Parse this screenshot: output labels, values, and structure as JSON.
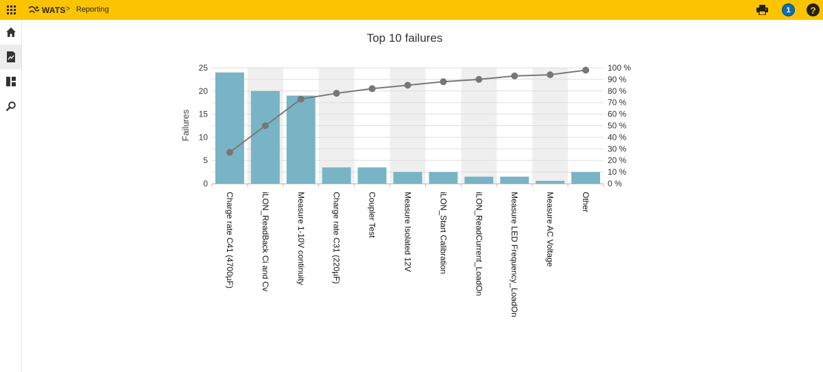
{
  "header": {
    "brand": "WATS",
    "separator": ">",
    "page": "Reporting",
    "notification_count": "1",
    "help_label": "?",
    "icons": [
      "apps-grid-icon",
      "wats-logo-icon",
      "print-icon",
      "notification-badge",
      "help-icon"
    ]
  },
  "sidebar": {
    "items": [
      {
        "icon": "home-icon",
        "active": false
      },
      {
        "icon": "report-chart-icon",
        "active": true
      },
      {
        "icon": "dashboard-icon",
        "active": false
      },
      {
        "icon": "search-icon",
        "active": false
      }
    ]
  },
  "colors": {
    "topbar": "#fcc400",
    "bar": "#78b4c5",
    "line": "#777777",
    "band": "#efefef",
    "grid": "#dddddd"
  },
  "chart_data": {
    "type": "bar",
    "title": "Top 10 failures",
    "ylabel": "Failures",
    "ylim": [
      0,
      25
    ],
    "y_ticks": [
      "0",
      "5",
      "10",
      "15",
      "20",
      "25"
    ],
    "y2lim": [
      0,
      100
    ],
    "y2_ticks": [
      "0 %",
      "10 %",
      "20 %",
      "30 %",
      "40 %",
      "50 %",
      "60 %",
      "70 %",
      "80 %",
      "90 %",
      "100 %"
    ],
    "grid": true,
    "categories": [
      "Charge rate C41 (4700µF)",
      "iLON_ReadBack Ci and Cv",
      "Measure 1-10V continuity",
      "Charge rate C31 (220µF)",
      "Coupler Test",
      "Measure Isolated 12V",
      "iLON_Start Calibration",
      "iLON_ReadCurrent_LoadOn",
      "Measure LED Frequency_LoadOn",
      "Measure AC Voltage",
      "Other"
    ],
    "series": [
      {
        "type": "bar",
        "values": [
          24,
          20,
          19,
          3.5,
          3.5,
          2.5,
          2.5,
          1.5,
          1.5,
          0.6,
          2.5
        ]
      },
      {
        "type": "line",
        "axis": "right",
        "values": [
          27,
          50,
          73,
          78,
          82,
          85,
          88,
          90,
          93,
          94,
          98
        ]
      }
    ]
  }
}
